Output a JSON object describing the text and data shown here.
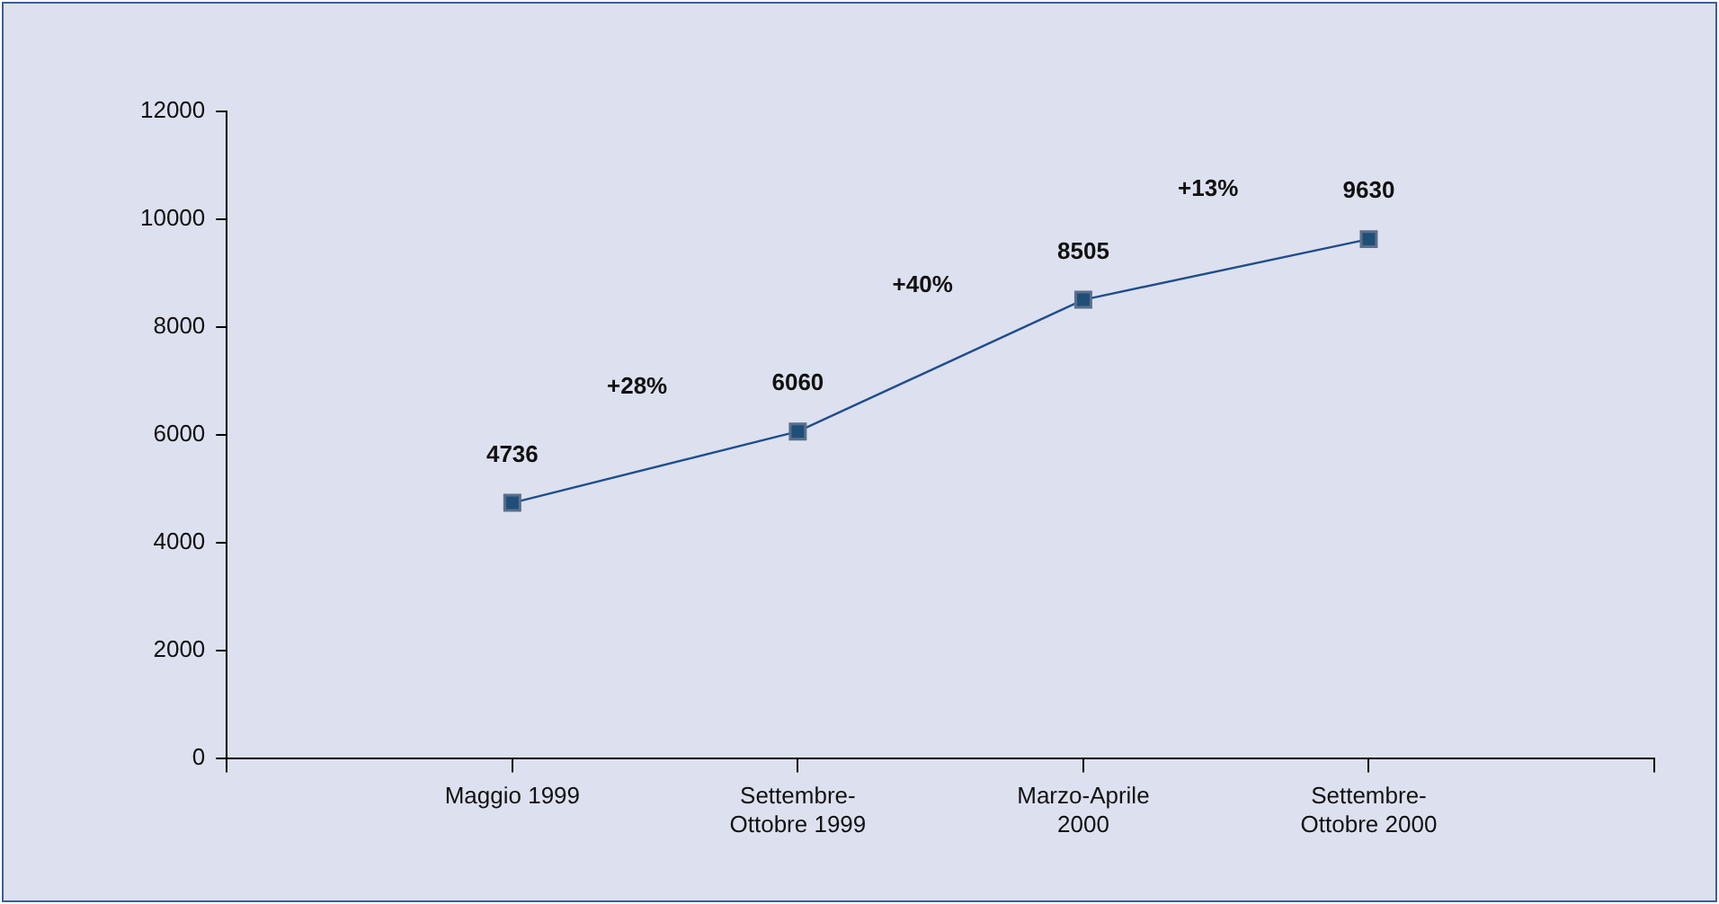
{
  "chart_data": {
    "type": "line",
    "categories": [
      null,
      "Maggio 1999",
      "Settembre-\nOttobre 1999",
      "Marzo-Aprile\n2000",
      "Settembre-\nOttobre 2000",
      null
    ],
    "series": [
      {
        "color": "#1f4e8c",
        "values": [
          null,
          4736,
          6060,
          8505,
          9630,
          null
        ]
      }
    ],
    "ylim": [
      0,
      12000
    ],
    "yticks": [
      0,
      2000,
      4000,
      6000,
      8000,
      10000,
      12000
    ],
    "grid": false,
    "legend": false,
    "marker": "square",
    "line_style": "solid",
    "data_labels": true,
    "annotations": [
      "+28%",
      "+40%",
      "+13%"
    ]
  }
}
